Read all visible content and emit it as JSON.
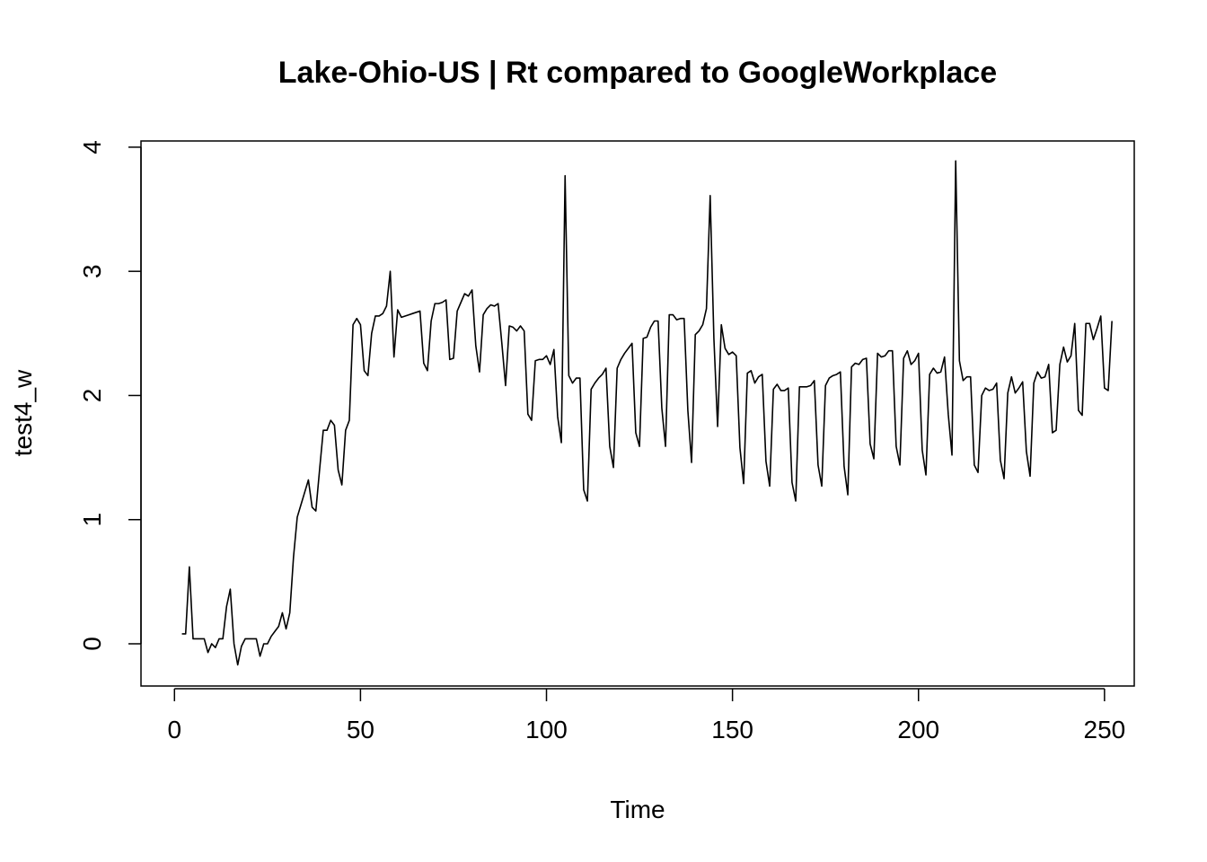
{
  "chart_data": {
    "type": "line",
    "title": "Lake-Ohio-US | Rt compared to GoogleWorkplace",
    "xlabel": "Time",
    "ylabel": "test4_w",
    "xlim": [
      -9,
      258
    ],
    "ylim": [
      -0.34,
      4.05
    ],
    "x_ticks": [
      0,
      50,
      100,
      150,
      200,
      250
    ],
    "y_ticks": [
      0,
      1,
      2,
      3,
      4
    ],
    "x_tick_labels": [
      "0",
      "50",
      "100",
      "150",
      "200",
      "250"
    ],
    "y_tick_labels": [
      "0",
      "1",
      "2",
      "3",
      "4"
    ],
    "grid": false,
    "legend": "none",
    "line_color": "#000000",
    "series": [
      {
        "x_start": 2,
        "x_step": 1,
        "values": [
          0.08,
          0.08,
          0.62,
          0.04,
          0.04,
          0.04,
          0.04,
          -0.07,
          0.0,
          -0.03,
          0.04,
          0.04,
          0.3,
          0.44,
          0.0,
          -0.17,
          -0.02,
          0.04,
          0.04,
          0.04,
          0.04,
          -0.1,
          0.0,
          0.0,
          0.06,
          0.1,
          0.14,
          0.25,
          0.12,
          0.25,
          0.7,
          1.02,
          1.12,
          1.22,
          1.32,
          1.1,
          1.07,
          1.4,
          1.72,
          1.72,
          1.8,
          1.76,
          1.4,
          1.28,
          1.72,
          1.8,
          2.57,
          2.62,
          2.57,
          2.2,
          2.16,
          2.5,
          2.64,
          2.64,
          2.66,
          2.72,
          3.0,
          2.31,
          2.69,
          2.63,
          2.64,
          2.65,
          2.66,
          2.67,
          2.68,
          2.26,
          2.2,
          2.6,
          2.74,
          2.74,
          2.75,
          2.77,
          2.29,
          2.3,
          2.68,
          2.75,
          2.82,
          2.8,
          2.85,
          2.4,
          2.19,
          2.65,
          2.7,
          2.73,
          2.72,
          2.74,
          2.42,
          2.08,
          2.56,
          2.55,
          2.52,
          2.56,
          2.52,
          1.85,
          1.8,
          2.28,
          2.29,
          2.29,
          2.32,
          2.25,
          2.37,
          1.83,
          1.62,
          3.77,
          2.16,
          2.1,
          2.14,
          2.14,
          1.24,
          1.15,
          2.05,
          2.1,
          2.14,
          2.17,
          2.22,
          1.59,
          1.42,
          2.22,
          2.29,
          2.34,
          2.38,
          2.42,
          1.7,
          1.59,
          2.46,
          2.47,
          2.55,
          2.6,
          2.6,
          1.9,
          1.59,
          2.65,
          2.65,
          2.61,
          2.62,
          2.62,
          1.88,
          1.46,
          2.49,
          2.52,
          2.57,
          2.7,
          3.61,
          2.46,
          1.75,
          2.57,
          2.38,
          2.33,
          2.35,
          2.32,
          1.58,
          1.29,
          2.18,
          2.2,
          2.1,
          2.15,
          2.17,
          1.47,
          1.27,
          2.05,
          2.09,
          2.04,
          2.04,
          2.06,
          1.3,
          1.15,
          2.07,
          2.07,
          2.07,
          2.08,
          2.12,
          1.44,
          1.27,
          2.08,
          2.14,
          2.16,
          2.17,
          2.19,
          1.43,
          1.2,
          2.23,
          2.26,
          2.25,
          2.29,
          2.3,
          1.61,
          1.49,
          2.34,
          2.31,
          2.32,
          2.36,
          2.36,
          1.59,
          1.44,
          2.3,
          2.36,
          2.25,
          2.28,
          2.34,
          1.56,
          1.36,
          2.17,
          2.22,
          2.18,
          2.19,
          2.31,
          1.85,
          1.52,
          3.89,
          2.28,
          2.12,
          2.15,
          2.15,
          1.44,
          1.38,
          2.0,
          2.06,
          2.04,
          2.05,
          2.1,
          1.48,
          1.33,
          2.02,
          2.15,
          2.02,
          2.06,
          2.11,
          1.55,
          1.35,
          2.1,
          2.19,
          2.14,
          2.15,
          2.25,
          1.7,
          1.72,
          2.25,
          2.39,
          2.27,
          2.32,
          2.58,
          1.88,
          1.84,
          2.58,
          2.58,
          2.45,
          2.54,
          2.64,
          2.06,
          2.04,
          2.6
        ]
      }
    ]
  }
}
